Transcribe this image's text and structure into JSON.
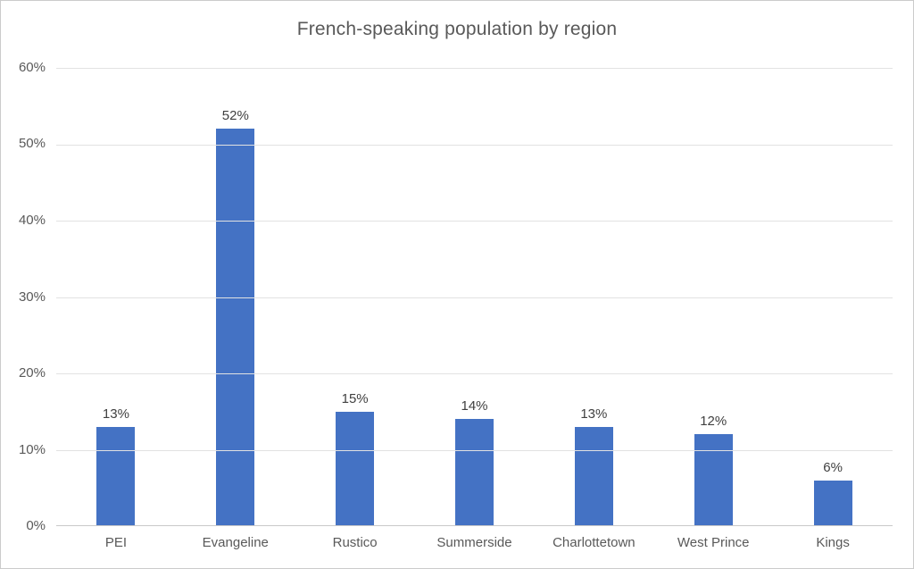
{
  "chart_data": {
    "type": "bar",
    "title": "French-speaking population by region",
    "categories": [
      "PEI",
      "Evangeline",
      "Rustico",
      "Summerside",
      "Charlottetown",
      "West Prince",
      "Kings"
    ],
    "values": [
      13,
      52,
      15,
      14,
      13,
      12,
      6
    ],
    "value_labels": [
      "13%",
      "52%",
      "15%",
      "14%",
      "13%",
      "12%",
      "6%"
    ],
    "xlabel": "",
    "ylabel": "",
    "ylim": [
      0,
      60
    ],
    "ytick_step": 10,
    "ytick_labels": [
      "0%",
      "10%",
      "20%",
      "30%",
      "40%",
      "50%",
      "60%"
    ],
    "grid": true,
    "legend": false,
    "colors": {
      "bar": "#4472C4",
      "title_text": "#595959",
      "axis_text": "#595959",
      "data_label_text": "#404040",
      "gridline": "#E2E2E2",
      "axis_line": "#C9C9C9",
      "frame_border": "#CBCBCB",
      "background": "#FFFFFF"
    }
  }
}
